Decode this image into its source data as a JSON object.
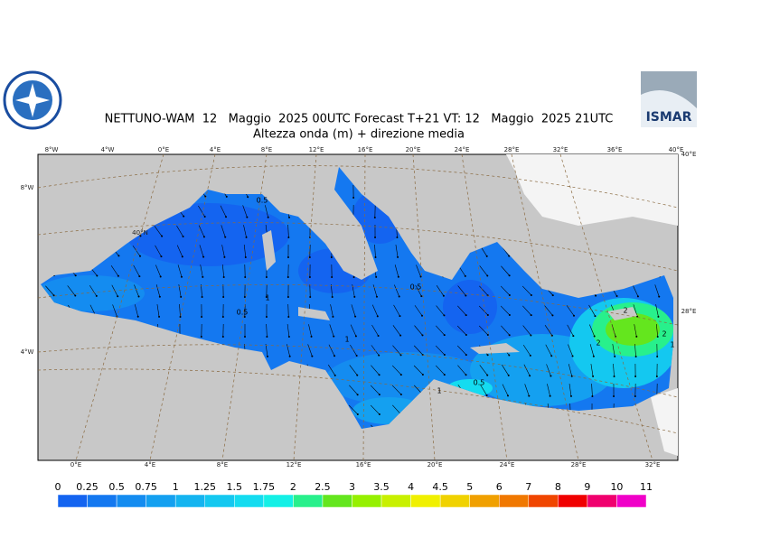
{
  "header": {
    "title": "NETTUNO-WAM  12   Maggio  2025 00UTC Forecast T+21 VT: 12   Maggio  2025 21UTC",
    "subtitle": "Altezza onda (m) + direzione media"
  },
  "logos": {
    "right_text": "ISMAR"
  },
  "graticule": {
    "top": [
      "8°W",
      "4°W",
      "0°E",
      "4°E",
      "8°E",
      "12°E",
      "16°E",
      "20°E",
      "24°E",
      "28°E",
      "32°E",
      "36°E",
      "40°E"
    ],
    "bottom": [
      "0°E",
      "4°E",
      "8°E",
      "12°E",
      "16°E",
      "20°E",
      "24°E",
      "28°E",
      "32°E"
    ],
    "left": [
      "8°W",
      "4°W"
    ],
    "right": [
      "40°E",
      "28°E"
    ],
    "inner": [
      "40°N"
    ]
  },
  "contour_labels": [
    "0.5",
    "1",
    "0.5",
    "1",
    "0.5",
    "1",
    "0.5",
    "2",
    "2",
    "2",
    "1"
  ],
  "colorbar": {
    "labels": [
      "0",
      "0.25",
      "0.5",
      "0.75",
      "1",
      "1.25",
      "1.5",
      "1.75",
      "2",
      "2.5",
      "3",
      "3.5",
      "4",
      "4.5",
      "5",
      "6",
      "7",
      "8",
      "9",
      "10",
      "11"
    ],
    "colors": [
      "#1464f0",
      "#1478f0",
      "#148cf0",
      "#14a0f0",
      "#14b4f0",
      "#14c8f0",
      "#14dcf0",
      "#14f0e6",
      "#28f08c",
      "#64e61e",
      "#96f000",
      "#c8f000",
      "#f0f000",
      "#f0d200",
      "#f0a000",
      "#f07800",
      "#f04600",
      "#f00000",
      "#f0006e",
      "#f000c8"
    ]
  }
}
